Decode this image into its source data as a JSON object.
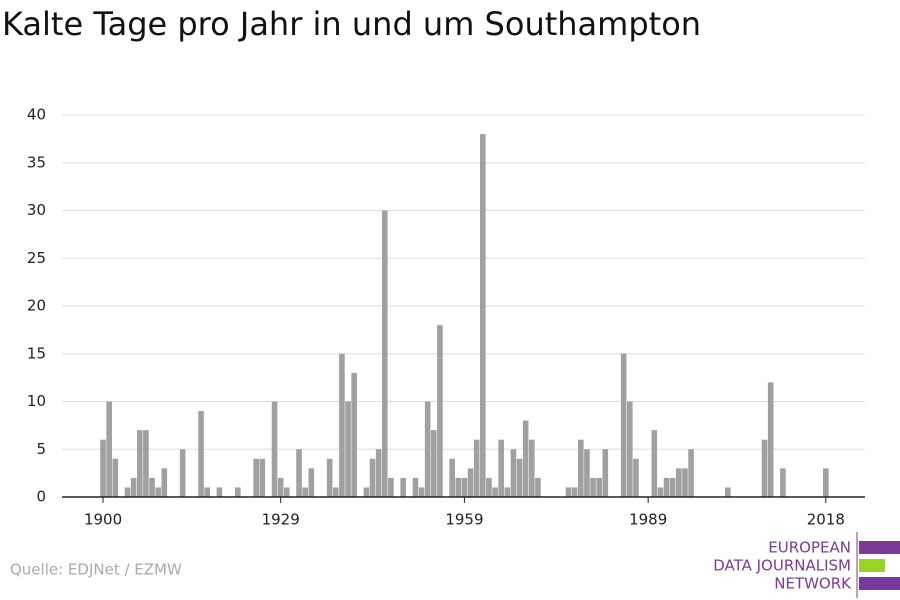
{
  "chart_data": {
    "type": "bar",
    "title": "Kalte Tage pro Jahr in und um Southampton",
    "x": [
      1900,
      1901,
      1902,
      1903,
      1904,
      1905,
      1906,
      1907,
      1908,
      1909,
      1910,
      1911,
      1912,
      1913,
      1914,
      1915,
      1916,
      1917,
      1918,
      1919,
      1920,
      1921,
      1922,
      1923,
      1924,
      1925,
      1926,
      1927,
      1928,
      1929,
      1930,
      1931,
      1932,
      1933,
      1934,
      1935,
      1936,
      1937,
      1938,
      1939,
      1940,
      1941,
      1942,
      1943,
      1944,
      1945,
      1946,
      1947,
      1948,
      1949,
      1950,
      1951,
      1952,
      1953,
      1954,
      1955,
      1956,
      1957,
      1958,
      1959,
      1960,
      1961,
      1962,
      1963,
      1964,
      1965,
      1966,
      1967,
      1968,
      1969,
      1970,
      1971,
      1972,
      1973,
      1974,
      1975,
      1976,
      1977,
      1978,
      1979,
      1980,
      1981,
      1982,
      1983,
      1984,
      1985,
      1986,
      1987,
      1988,
      1989,
      1990,
      1991,
      1992,
      1993,
      1994,
      1995,
      1996,
      1997,
      1998,
      1999,
      2000,
      2001,
      2002,
      2003,
      2004,
      2005,
      2006,
      2007,
      2008,
      2009,
      2010,
      2011,
      2012,
      2013,
      2014,
      2015,
      2016,
      2017,
      2018
    ],
    "values": [
      6,
      10,
      4,
      0,
      1,
      2,
      7,
      7,
      2,
      1,
      3,
      0,
      0,
      5,
      0,
      0,
      9,
      1,
      0,
      1,
      0,
      0,
      1,
      0,
      0,
      4,
      4,
      0,
      10,
      2,
      1,
      0,
      5,
      1,
      3,
      0,
      0,
      4,
      1,
      15,
      10,
      13,
      0,
      1,
      4,
      5,
      30,
      2,
      0,
      2,
      0,
      2,
      1,
      10,
      7,
      18,
      0,
      4,
      2,
      2,
      3,
      6,
      38,
      2,
      1,
      6,
      1,
      5,
      4,
      8,
      6,
      2,
      0,
      0,
      0,
      0,
      1,
      1,
      6,
      5,
      2,
      2,
      5,
      0,
      0,
      15,
      10,
      4,
      0,
      0,
      7,
      1,
      2,
      2,
      3,
      3,
      5,
      0,
      0,
      0,
      0,
      0,
      1,
      0,
      0,
      0,
      0,
      0,
      6,
      12,
      0,
      3,
      0,
      0,
      0,
      0,
      0,
      0,
      3
    ],
    "color": "#a0a0a0",
    "xlim": [
      1893.3,
      2024.4
    ],
    "xticks": [
      1900,
      1929,
      1959,
      1989,
      2018
    ],
    "ylim": [
      0,
      40
    ],
    "yticks": [
      0,
      5,
      10,
      15,
      20,
      25,
      30,
      35,
      40
    ],
    "grid": true
  },
  "footer": {
    "source": "Quelle: EDJNet / EZMW",
    "logo": [
      "EUROPEAN",
      "DATA JOURNALISM",
      "NETWORK"
    ]
  }
}
